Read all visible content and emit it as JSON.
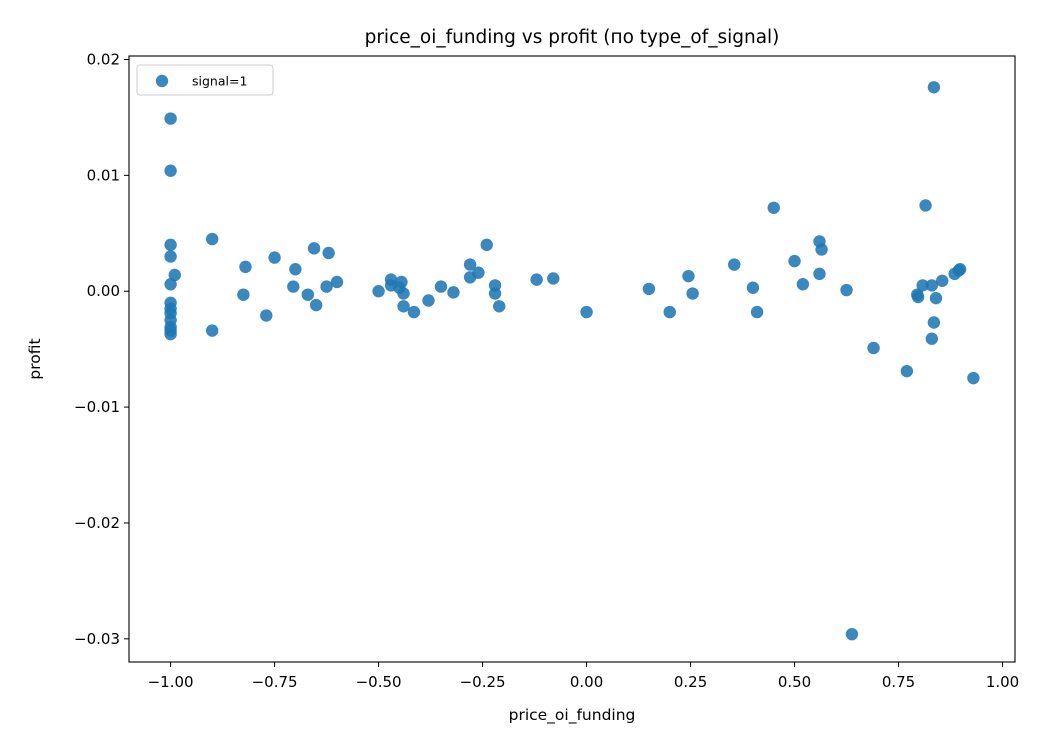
{
  "chart_data": {
    "type": "scatter",
    "title": "price_oi_funding vs profit (по type_of_signal)",
    "xlabel": "price_oi_funding",
    "ylabel": "profit",
    "xlim": [
      -1.1,
      1.03
    ],
    "ylim": [
      -0.032,
      0.0203
    ],
    "x_ticks": [
      -1.0,
      -0.75,
      -0.5,
      -0.25,
      0.0,
      0.25,
      0.5,
      0.75,
      1.0
    ],
    "x_tick_labels": [
      "−1.00",
      "−0.75",
      "−0.50",
      "−0.25",
      "0.00",
      "0.25",
      "0.50",
      "0.75",
      "1.00"
    ],
    "y_ticks": [
      -0.03,
      -0.02,
      -0.01,
      0.0,
      0.01,
      0.02
    ],
    "y_tick_labels": [
      "−0.03",
      "−0.02",
      "−0.01",
      "0.00",
      "0.01",
      "0.02"
    ],
    "grid": false,
    "legend_position": "top-left",
    "series": [
      {
        "name": "signal=1",
        "color": "#1f77b4",
        "points": [
          [
            -1.0,
            0.0149
          ],
          [
            -1.0,
            0.0104
          ],
          [
            -1.0,
            0.004
          ],
          [
            -1.0,
            0.003
          ],
          [
            -1.0,
            0.0006
          ],
          [
            -1.0,
            -0.001
          ],
          [
            -1.0,
            -0.0015
          ],
          [
            -1.0,
            -0.0019
          ],
          [
            -1.0,
            -0.0025
          ],
          [
            -1.0,
            -0.0031
          ],
          [
            -1.0,
            -0.0034
          ],
          [
            -1.0,
            -0.0037
          ],
          [
            -0.99,
            0.0014
          ],
          [
            -0.9,
            0.0045
          ],
          [
            -0.9,
            -0.0034
          ],
          [
            -0.825,
            -0.0003
          ],
          [
            -0.82,
            0.0021
          ],
          [
            -0.77,
            -0.0021
          ],
          [
            -0.75,
            0.0029
          ],
          [
            -0.705,
            0.0004
          ],
          [
            -0.7,
            0.0019
          ],
          [
            -0.67,
            -0.0003
          ],
          [
            -0.655,
            0.0037
          ],
          [
            -0.65,
            -0.0012
          ],
          [
            -0.625,
            0.0004
          ],
          [
            -0.62,
            0.0033
          ],
          [
            -0.6,
            0.0008
          ],
          [
            -0.5,
            0.0
          ],
          [
            -0.47,
            0.001
          ],
          [
            -0.47,
            0.0005
          ],
          [
            -0.45,
            0.0003
          ],
          [
            -0.445,
            0.0008
          ],
          [
            -0.44,
            -0.0013
          ],
          [
            -0.44,
            -0.0002
          ],
          [
            -0.415,
            -0.0018
          ],
          [
            -0.38,
            -0.0008
          ],
          [
            -0.35,
            0.0004
          ],
          [
            -0.32,
            -0.0001
          ],
          [
            -0.28,
            0.0023
          ],
          [
            -0.28,
            0.0012
          ],
          [
            -0.26,
            0.0016
          ],
          [
            -0.24,
            0.004
          ],
          [
            -0.22,
            0.0005
          ],
          [
            -0.22,
            -0.0002
          ],
          [
            -0.21,
            -0.0013
          ],
          [
            -0.12,
            0.001
          ],
          [
            -0.08,
            0.0011
          ],
          [
            0.0,
            -0.0018
          ],
          [
            0.15,
            0.0002
          ],
          [
            0.2,
            -0.0018
          ],
          [
            0.245,
            0.0013
          ],
          [
            0.255,
            -0.0002
          ],
          [
            0.355,
            0.0023
          ],
          [
            0.4,
            0.0003
          ],
          [
            0.41,
            -0.0018
          ],
          [
            0.45,
            0.0072
          ],
          [
            0.5,
            0.0026
          ],
          [
            0.52,
            0.0006
          ],
          [
            0.56,
            0.0043
          ],
          [
            0.56,
            0.0015
          ],
          [
            0.565,
            0.0036
          ],
          [
            0.625,
            0.0001
          ],
          [
            0.638,
            -0.0296
          ],
          [
            0.69,
            -0.0049
          ],
          [
            0.77,
            -0.0069
          ],
          [
            0.795,
            -0.0003
          ],
          [
            0.797,
            -0.0005
          ],
          [
            0.808,
            0.0005
          ],
          [
            0.815,
            0.0074
          ],
          [
            0.83,
            0.0005
          ],
          [
            0.83,
            -0.0041
          ],
          [
            0.835,
            -0.0027
          ],
          [
            0.835,
            0.0176
          ],
          [
            0.84,
            -0.0006
          ],
          [
            0.855,
            0.0009
          ],
          [
            0.885,
            0.0015
          ],
          [
            0.895,
            0.0018
          ],
          [
            0.898,
            0.0019
          ],
          [
            0.93,
            -0.0075
          ]
        ]
      }
    ]
  }
}
